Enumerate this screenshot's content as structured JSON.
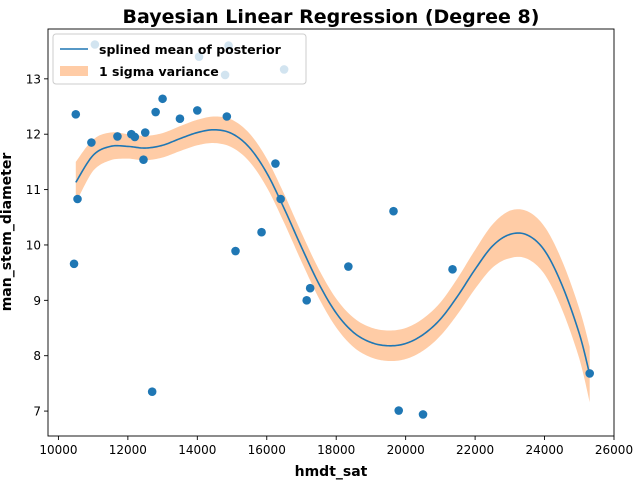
{
  "chart_data": {
    "type": "scatter",
    "title": "Bayesian Linear Regression (Degree 8)",
    "xlabel": "hmdt_sat",
    "ylabel": "man_stem_diameter",
    "xlim": [
      9700,
      26000
    ],
    "ylim": [
      6.55,
      13.9
    ],
    "xticks": [
      10000,
      12000,
      14000,
      16000,
      18000,
      20000,
      22000,
      24000,
      26000
    ],
    "yticks": [
      7,
      8,
      9,
      10,
      11,
      12,
      13
    ],
    "legend": {
      "placement": "top-left",
      "entries": [
        "splined mean of posterior",
        "1 sigma variance"
      ]
    },
    "colors": {
      "points": "#1f77b4",
      "mean_line": "#1f77b4",
      "variance_band": "#ffbb88"
    },
    "points": [
      {
        "x": 10450,
        "y": 9.66
      },
      {
        "x": 10500,
        "y": 12.36
      },
      {
        "x": 10550,
        "y": 10.83
      },
      {
        "x": 10950,
        "y": 11.85
      },
      {
        "x": 11050,
        "y": 13.62
      },
      {
        "x": 11700,
        "y": 11.96
      },
      {
        "x": 12100,
        "y": 12.0
      },
      {
        "x": 12200,
        "y": 11.95
      },
      {
        "x": 12450,
        "y": 11.54
      },
      {
        "x": 12500,
        "y": 12.03
      },
      {
        "x": 12700,
        "y": 7.35
      },
      {
        "x": 12800,
        "y": 12.4
      },
      {
        "x": 13000,
        "y": 12.64
      },
      {
        "x": 13500,
        "y": 12.28
      },
      {
        "x": 14000,
        "y": 12.43
      },
      {
        "x": 14050,
        "y": 13.4
      },
      {
        "x": 14800,
        "y": 13.07
      },
      {
        "x": 14850,
        "y": 12.32
      },
      {
        "x": 14900,
        "y": 13.6
      },
      {
        "x": 15100,
        "y": 9.89
      },
      {
        "x": 15850,
        "y": 10.23
      },
      {
        "x": 16250,
        "y": 11.47
      },
      {
        "x": 16400,
        "y": 10.83
      },
      {
        "x": 16500,
        "y": 13.17
      },
      {
        "x": 17150,
        "y": 9.0
      },
      {
        "x": 17250,
        "y": 9.22
      },
      {
        "x": 18350,
        "y": 9.61
      },
      {
        "x": 19650,
        "y": 10.61
      },
      {
        "x": 19800,
        "y": 7.01
      },
      {
        "x": 20500,
        "y": 6.94
      },
      {
        "x": 21350,
        "y": 9.56
      },
      {
        "x": 25300,
        "y": 7.68
      }
    ],
    "mean_curve": [
      {
        "x": 10500,
        "y": 11.13
      },
      {
        "x": 11000,
        "y": 11.62
      },
      {
        "x": 11500,
        "y": 11.78
      },
      {
        "x": 12000,
        "y": 11.78
      },
      {
        "x": 12500,
        "y": 11.75
      },
      {
        "x": 13000,
        "y": 11.8
      },
      {
        "x": 13500,
        "y": 11.92
      },
      {
        "x": 14000,
        "y": 12.03
      },
      {
        "x": 14500,
        "y": 12.08
      },
      {
        "x": 15000,
        "y": 12.01
      },
      {
        "x": 15500,
        "y": 11.76
      },
      {
        "x": 16000,
        "y": 11.3
      },
      {
        "x": 16500,
        "y": 10.66
      },
      {
        "x": 17000,
        "y": 9.96
      },
      {
        "x": 17500,
        "y": 9.3
      },
      {
        "x": 18000,
        "y": 8.77
      },
      {
        "x": 18500,
        "y": 8.42
      },
      {
        "x": 19000,
        "y": 8.24
      },
      {
        "x": 19500,
        "y": 8.18
      },
      {
        "x": 20000,
        "y": 8.22
      },
      {
        "x": 20500,
        "y": 8.38
      },
      {
        "x": 21000,
        "y": 8.66
      },
      {
        "x": 21500,
        "y": 9.08
      },
      {
        "x": 22000,
        "y": 9.56
      },
      {
        "x": 22500,
        "y": 9.98
      },
      {
        "x": 23000,
        "y": 10.19
      },
      {
        "x": 23500,
        "y": 10.18
      },
      {
        "x": 24000,
        "y": 9.9
      },
      {
        "x": 24500,
        "y": 9.28
      },
      {
        "x": 25000,
        "y": 8.4
      },
      {
        "x": 25300,
        "y": 7.66
      }
    ],
    "sigma_half_width": [
      {
        "x": 10500,
        "y": 0.37
      },
      {
        "x": 11000,
        "y": 0.28
      },
      {
        "x": 12000,
        "y": 0.22
      },
      {
        "x": 13000,
        "y": 0.22
      },
      {
        "x": 14000,
        "y": 0.23
      },
      {
        "x": 15000,
        "y": 0.25
      },
      {
        "x": 16000,
        "y": 0.26
      },
      {
        "x": 17000,
        "y": 0.26
      },
      {
        "x": 18000,
        "y": 0.26
      },
      {
        "x": 19000,
        "y": 0.27
      },
      {
        "x": 20000,
        "y": 0.28
      },
      {
        "x": 21000,
        "y": 0.3
      },
      {
        "x": 22000,
        "y": 0.35
      },
      {
        "x": 23000,
        "y": 0.43
      },
      {
        "x": 24000,
        "y": 0.43
      },
      {
        "x": 25000,
        "y": 0.45
      },
      {
        "x": 25300,
        "y": 0.5
      }
    ]
  }
}
